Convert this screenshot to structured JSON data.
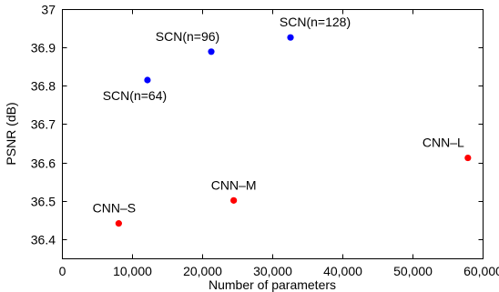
{
  "chart_data": {
    "type": "scatter",
    "xlabel": "Number of parameters",
    "ylabel": "PSNR (dB)",
    "xlim": [
      0,
      60000
    ],
    "ylim": [
      36.35,
      37.0
    ],
    "grid": false,
    "x_ticks": [
      0,
      10000,
      20000,
      30000,
      40000,
      50000,
      60000
    ],
    "x_tick_labels": [
      "0",
      "10,000",
      "20,000",
      "30,000",
      "40,000",
      "50,000",
      "60,000"
    ],
    "y_ticks": [
      36.4,
      36.5,
      36.6,
      36.7,
      36.8,
      36.9,
      37.0
    ],
    "y_tick_labels": [
      "36.4",
      "36.5",
      "36.6",
      "36.7",
      "36.8",
      "36.9",
      "37"
    ],
    "series": [
      {
        "color": "#0000ff",
        "points": [
          {
            "label": "SCN(n=64)",
            "x": 12200,
            "y": 36.815,
            "label_pos": "below-left"
          },
          {
            "label": "SCN(n=96)",
            "x": 21300,
            "y": 36.889,
            "label_pos": "above-left"
          },
          {
            "label": "SCN(n=128)",
            "x": 32600,
            "y": 36.926,
            "label_pos": "above-right"
          }
        ]
      },
      {
        "color": "#ff0000",
        "points": [
          {
            "label": "CNN–S",
            "x": 8100,
            "y": 36.441,
            "label_pos": "above-left"
          },
          {
            "label": "CNN–M",
            "x": 24500,
            "y": 36.501,
            "label_pos": "above-center"
          },
          {
            "label": "CNN–L",
            "x": 57900,
            "y": 36.612,
            "label_pos": "above-left"
          }
        ]
      }
    ]
  }
}
